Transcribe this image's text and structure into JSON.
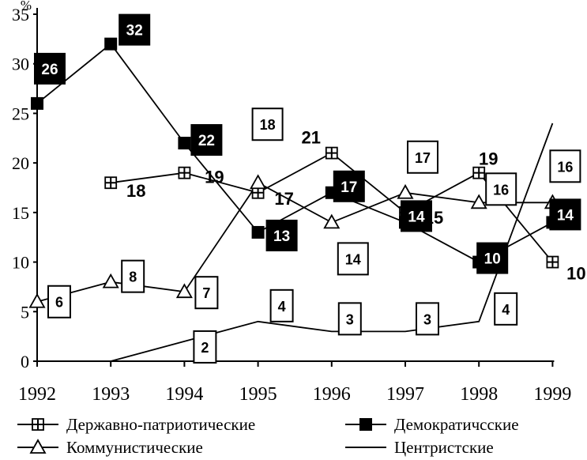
{
  "chart_data": {
    "type": "line",
    "ylabel": "%",
    "ylim": [
      0,
      35
    ],
    "yticks": [
      0,
      5,
      10,
      15,
      20,
      25,
      30,
      35
    ],
    "x": [
      "1992",
      "1993",
      "1994",
      "1995",
      "1996",
      "1997",
      "1998",
      "1999"
    ],
    "grid": false,
    "legend_position": "bottom",
    "series": [
      {
        "name": "Державно-патриотические",
        "marker": "cross",
        "label_style": "plain",
        "values": [
          null,
          18,
          19,
          17,
          21,
          15,
          19,
          10
        ]
      },
      {
        "name": "Демократичсские",
        "marker": "square",
        "label_style": "dark",
        "values": [
          26,
          32,
          22,
          13,
          17,
          14,
          10,
          14
        ]
      },
      {
        "name": "Коммунистические",
        "marker": "triangle",
        "label_style": "box",
        "values": [
          6,
          8,
          7,
          18,
          14,
          17,
          16,
          16
        ]
      },
      {
        "name": "Центристские",
        "marker": "none",
        "label_style": "box",
        "values": [
          null,
          0,
          2,
          4,
          3,
          3,
          4,
          24
        ]
      }
    ]
  }
}
